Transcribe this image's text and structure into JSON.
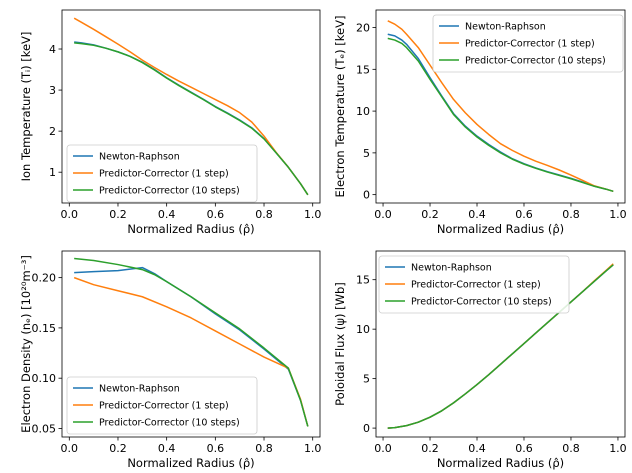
{
  "colors": {
    "Newton-Raphson": "#1f77b4",
    "Predictor-Corrector (1 step)": "#ff7f0e",
    "Predictor-Corrector (10 steps)": "#2ca02c"
  },
  "chart_data": [
    {
      "type": "line",
      "xlabel": "Normalized Radius (ρ̂)",
      "ylabel": "Ion Temperature (Tᵢ) [keV]",
      "xlim": [
        -0.03,
        1.03
      ],
      "ylim": [
        0.25,
        4.95
      ],
      "xticks": [
        "0.0",
        "0.2",
        "0.4",
        "0.6",
        "0.8",
        "1.0"
      ],
      "yticks": [
        "1",
        "2",
        "3",
        "4"
      ],
      "legend_position": "lower-left",
      "grid": false,
      "series": [
        {
          "name": "Newton-Raphson",
          "x": [
            0.02,
            0.05,
            0.1,
            0.15,
            0.2,
            0.25,
            0.3,
            0.35,
            0.4,
            0.45,
            0.5,
            0.55,
            0.6,
            0.65,
            0.7,
            0.75,
            0.8,
            0.85,
            0.9,
            0.95,
            0.98
          ],
          "y": [
            4.17,
            4.15,
            4.1,
            4.02,
            3.93,
            3.82,
            3.68,
            3.5,
            3.3,
            3.12,
            2.95,
            2.78,
            2.6,
            2.44,
            2.27,
            2.08,
            1.82,
            1.47,
            1.12,
            0.72,
            0.45
          ]
        },
        {
          "name": "Predictor-Corrector (1 step)",
          "x": [
            0.02,
            0.05,
            0.1,
            0.15,
            0.2,
            0.25,
            0.3,
            0.35,
            0.4,
            0.45,
            0.5,
            0.55,
            0.6,
            0.65,
            0.7,
            0.75,
            0.8,
            0.85,
            0.9,
            0.95,
            0.98
          ],
          "y": [
            4.75,
            4.65,
            4.48,
            4.3,
            4.12,
            3.93,
            3.73,
            3.55,
            3.38,
            3.22,
            3.07,
            2.92,
            2.77,
            2.62,
            2.45,
            2.22,
            1.88,
            1.48,
            1.12,
            0.72,
            0.45
          ]
        },
        {
          "name": "Predictor-Corrector (10 steps)",
          "x": [
            0.02,
            0.05,
            0.1,
            0.15,
            0.2,
            0.25,
            0.3,
            0.35,
            0.4,
            0.45,
            0.5,
            0.55,
            0.6,
            0.65,
            0.7,
            0.75,
            0.8,
            0.85,
            0.9,
            0.95,
            0.98
          ],
          "y": [
            4.15,
            4.13,
            4.09,
            4.02,
            3.93,
            3.82,
            3.67,
            3.49,
            3.29,
            3.11,
            2.94,
            2.77,
            2.59,
            2.43,
            2.26,
            2.07,
            1.81,
            1.47,
            1.12,
            0.72,
            0.45
          ]
        }
      ]
    },
    {
      "type": "line",
      "xlabel": "Normalized Radius (ρ̂)",
      "ylabel": "Electron Temperature (Tₑ) [keV]",
      "xlim": [
        -0.03,
        1.03
      ],
      "ylim": [
        -1.0,
        22.1
      ],
      "xticks": [
        "0.0",
        "0.2",
        "0.4",
        "0.6",
        "0.8",
        "1.0"
      ],
      "yticks": [
        "0",
        "5",
        "10",
        "15",
        "20"
      ],
      "legend_position": "upper-right",
      "grid": false,
      "series": [
        {
          "name": "Newton-Raphson",
          "x": [
            0.02,
            0.05,
            0.08,
            0.1,
            0.15,
            0.2,
            0.25,
            0.3,
            0.35,
            0.4,
            0.45,
            0.5,
            0.55,
            0.6,
            0.65,
            0.7,
            0.75,
            0.8,
            0.85,
            0.9,
            0.95,
            0.98
          ],
          "y": [
            19.2,
            19.0,
            18.5,
            18.0,
            16.3,
            14.0,
            11.8,
            9.7,
            8.2,
            7.0,
            6.0,
            5.1,
            4.3,
            3.7,
            3.2,
            2.75,
            2.35,
            1.95,
            1.5,
            1.0,
            0.65,
            0.4
          ]
        },
        {
          "name": "Predictor-Corrector (1 step)",
          "x": [
            0.02,
            0.05,
            0.08,
            0.1,
            0.15,
            0.2,
            0.25,
            0.3,
            0.35,
            0.4,
            0.45,
            0.5,
            0.55,
            0.6,
            0.65,
            0.7,
            0.75,
            0.8,
            0.85,
            0.9,
            0.95,
            0.98
          ],
          "y": [
            20.8,
            20.4,
            19.8,
            19.2,
            17.6,
            15.5,
            13.4,
            11.4,
            9.8,
            8.4,
            7.2,
            6.1,
            5.3,
            4.6,
            4.0,
            3.5,
            2.95,
            2.35,
            1.7,
            1.05,
            0.65,
            0.4
          ]
        },
        {
          "name": "Predictor-Corrector (10 steps)",
          "x": [
            0.02,
            0.05,
            0.08,
            0.1,
            0.15,
            0.2,
            0.25,
            0.3,
            0.35,
            0.4,
            0.45,
            0.5,
            0.55,
            0.6,
            0.65,
            0.7,
            0.75,
            0.8,
            0.85,
            0.9,
            0.95,
            0.98
          ],
          "y": [
            18.7,
            18.5,
            18.1,
            17.6,
            16.0,
            13.8,
            11.7,
            9.6,
            8.1,
            6.9,
            5.9,
            5.0,
            4.25,
            3.65,
            3.15,
            2.7,
            2.3,
            1.9,
            1.45,
            1.0,
            0.65,
            0.4
          ]
        }
      ]
    },
    {
      "type": "line",
      "xlabel": "Normalized Radius (ρ̂)",
      "ylabel": "Electron Density (nₑ) [10²⁰m⁻³]",
      "xlim": [
        -0.03,
        1.03
      ],
      "ylim": [
        0.0415,
        0.2265
      ],
      "xticks": [
        "0.0",
        "0.2",
        "0.4",
        "0.6",
        "0.8",
        "1.0"
      ],
      "yticks": [
        "0.05",
        "0.10",
        "0.15",
        "0.20"
      ],
      "legend_position": "lower-left",
      "grid": false,
      "series": [
        {
          "name": "Newton-Raphson",
          "x": [
            0.02,
            0.1,
            0.2,
            0.3,
            0.35,
            0.4,
            0.5,
            0.6,
            0.7,
            0.8,
            0.9,
            0.95,
            0.98
          ],
          "y": [
            0.205,
            0.206,
            0.207,
            0.21,
            0.204,
            0.196,
            0.181,
            0.164,
            0.148,
            0.129,
            0.109,
            0.078,
            0.052
          ]
        },
        {
          "name": "Predictor-Corrector (1 step)",
          "x": [
            0.02,
            0.1,
            0.2,
            0.3,
            0.4,
            0.5,
            0.6,
            0.7,
            0.8,
            0.9,
            0.95,
            0.98
          ],
          "y": [
            0.2,
            0.193,
            0.187,
            0.181,
            0.171,
            0.16,
            0.147,
            0.134,
            0.121,
            0.11,
            0.079,
            0.052
          ]
        },
        {
          "name": "Predictor-Corrector (10 steps)",
          "x": [
            0.02,
            0.1,
            0.2,
            0.3,
            0.35,
            0.4,
            0.5,
            0.6,
            0.7,
            0.8,
            0.9,
            0.95,
            0.98
          ],
          "y": [
            0.219,
            0.217,
            0.213,
            0.208,
            0.203,
            0.196,
            0.181,
            0.165,
            0.149,
            0.13,
            0.11,
            0.078,
            0.052
          ]
        }
      ]
    },
    {
      "type": "line",
      "xlabel": "Normalized Radius (ρ̂)",
      "ylabel": "Poloidal Flux (ψ) [Wb]",
      "xlim": [
        -0.03,
        1.03
      ],
      "ylim": [
        -0.9,
        17.9
      ],
      "xticks": [
        "0.0",
        "0.2",
        "0.4",
        "0.6",
        "0.8",
        "1.0"
      ],
      "yticks": [
        "0",
        "5",
        "10",
        "15"
      ],
      "legend_position": "upper-left",
      "grid": false,
      "series": [
        {
          "name": "Newton-Raphson",
          "x": [
            0.02,
            0.05,
            0.1,
            0.15,
            0.2,
            0.25,
            0.3,
            0.35,
            0.4,
            0.45,
            0.5,
            0.55,
            0.6,
            0.65,
            0.7,
            0.75,
            0.8,
            0.85,
            0.9,
            0.95,
            0.98
          ],
          "y": [
            0.0,
            0.05,
            0.25,
            0.6,
            1.1,
            1.75,
            2.55,
            3.45,
            4.4,
            5.4,
            6.45,
            7.5,
            8.55,
            9.6,
            10.65,
            11.7,
            12.75,
            13.8,
            14.85,
            15.9,
            16.5
          ]
        },
        {
          "name": "Predictor-Corrector (1 step)",
          "x": [
            0.02,
            0.05,
            0.1,
            0.15,
            0.2,
            0.25,
            0.3,
            0.35,
            0.4,
            0.45,
            0.5,
            0.55,
            0.6,
            0.65,
            0.7,
            0.75,
            0.8,
            0.85,
            0.9,
            0.95,
            0.98
          ],
          "y": [
            0.0,
            0.05,
            0.25,
            0.6,
            1.1,
            1.75,
            2.55,
            3.45,
            4.4,
            5.4,
            6.45,
            7.5,
            8.55,
            9.6,
            10.65,
            11.7,
            12.75,
            13.8,
            14.9,
            15.95,
            16.6
          ]
        },
        {
          "name": "Predictor-Corrector (10 steps)",
          "x": [
            0.02,
            0.05,
            0.1,
            0.15,
            0.2,
            0.25,
            0.3,
            0.35,
            0.4,
            0.45,
            0.5,
            0.55,
            0.6,
            0.65,
            0.7,
            0.75,
            0.8,
            0.85,
            0.9,
            0.95,
            0.98
          ],
          "y": [
            0.0,
            0.05,
            0.25,
            0.6,
            1.1,
            1.75,
            2.55,
            3.45,
            4.4,
            5.4,
            6.45,
            7.5,
            8.55,
            9.6,
            10.65,
            11.7,
            12.75,
            13.8,
            14.85,
            15.9,
            16.5
          ]
        }
      ]
    }
  ]
}
